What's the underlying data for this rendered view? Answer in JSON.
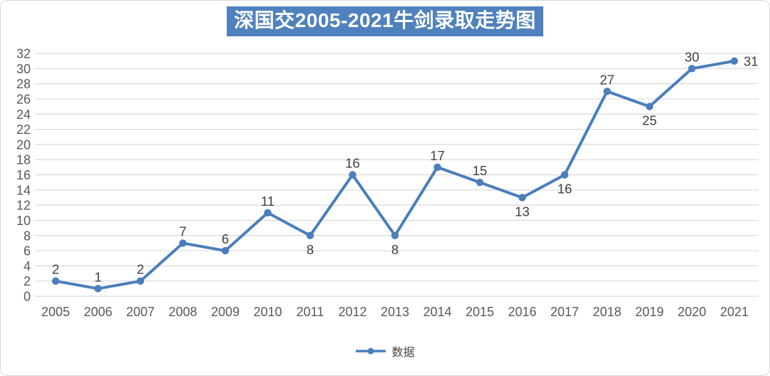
{
  "chart_data": {
    "type": "line",
    "title": "深国交2005-2021牛剑录取走势图",
    "categories": [
      "2005",
      "2006",
      "2007",
      "2008",
      "2009",
      "2010",
      "2011",
      "2012",
      "2013",
      "2014",
      "2015",
      "2016",
      "2017",
      "2018",
      "2019",
      "2020",
      "2021"
    ],
    "series": [
      {
        "name": "数据",
        "values": [
          2,
          1,
          2,
          7,
          6,
          11,
          8,
          16,
          8,
          17,
          15,
          13,
          16,
          27,
          25,
          30,
          31
        ]
      }
    ],
    "label_positions": [
      "above",
      "above",
      "above",
      "above",
      "above",
      "above",
      "below",
      "above",
      "below",
      "above",
      "above",
      "below",
      "below",
      "above",
      "below",
      "above",
      "right"
    ],
    "xlabel": "",
    "ylabel": "",
    "ylim": [
      0,
      32
    ],
    "ytick_step": 2,
    "grid": "horizontal",
    "legend_position": "bottom-center",
    "colors": {
      "line": "#4a7ebc",
      "marker": "#4a7ebc",
      "title_bg": "#4f81bd",
      "title_text": "#ffffff",
      "grid": "#d9d9d9",
      "axis_text": "#595959",
      "data_label": "#3f3f3f"
    }
  }
}
